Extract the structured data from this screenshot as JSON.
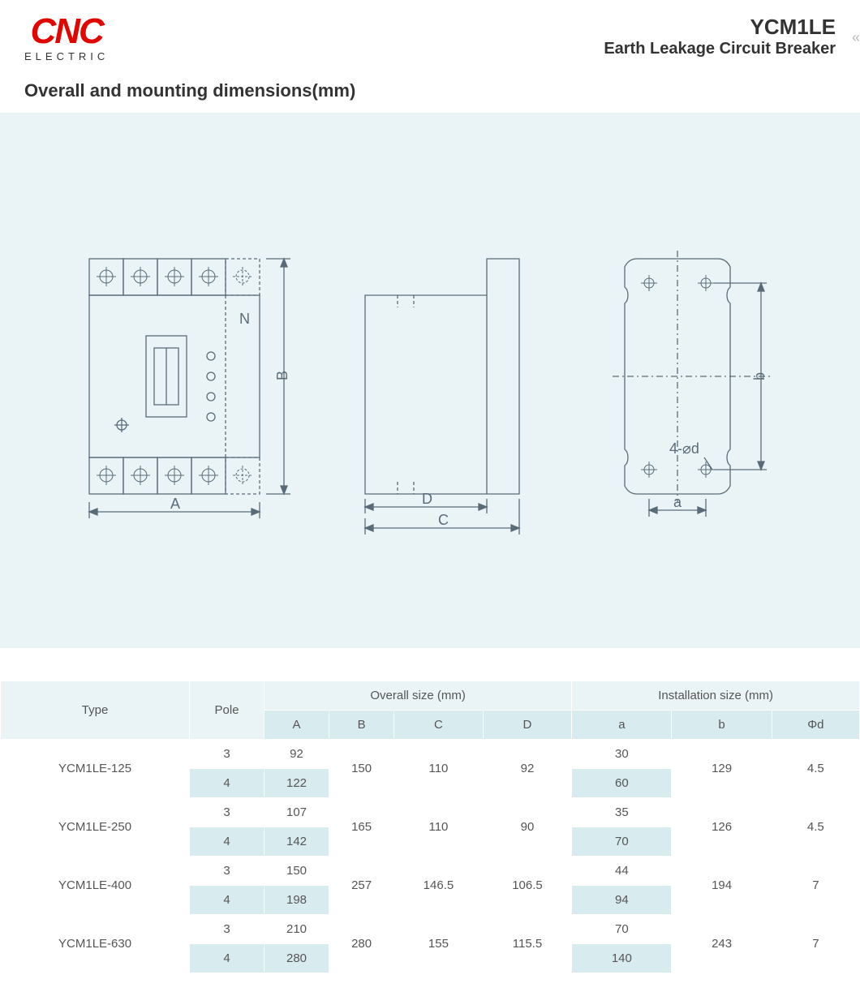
{
  "brand": {
    "logo_main": "CNC",
    "logo_sub": "ELECTRIC"
  },
  "product": {
    "code": "YCM1LE",
    "desc": "Earth Leakage Circuit Breaker"
  },
  "section_title": "Overall and mounting dimensions(mm)",
  "diagram": {
    "background_color": "#eaf4f6",
    "stroke_color": "#5a6b78",
    "labels": {
      "A": "A",
      "B": "B",
      "C": "C",
      "D": "D",
      "a": "a",
      "b": "b",
      "N": "N",
      "holes": "4-⌀d"
    }
  },
  "table": {
    "header_group_overall": "Overall size (mm)",
    "header_group_install": "Installation size (mm)",
    "columns": {
      "type": "Type",
      "pole": "Pole",
      "A": "A",
      "B": "B",
      "C": "C",
      "D": "D",
      "a": "a",
      "b": "b",
      "phid": "Φd"
    },
    "rows": [
      {
        "type": "YCM1LE-125",
        "pole3": "3",
        "pole4": "4",
        "A3": "92",
        "A4": "122",
        "B": "150",
        "C": "110",
        "D": "92",
        "a3": "30",
        "a4": "60",
        "b": "129",
        "phid": "4.5"
      },
      {
        "type": "YCM1LE-250",
        "pole3": "3",
        "pole4": "4",
        "A3": "107",
        "A4": "142",
        "B": "165",
        "C": "110",
        "D": "90",
        "a3": "35",
        "a4": "70",
        "b": "126",
        "phid": "4.5"
      },
      {
        "type": "YCM1LE-400",
        "pole3": "3",
        "pole4": "4",
        "A3": "150",
        "A4": "198",
        "B": "257",
        "C": "146.5",
        "D": "106.5",
        "a3": "44",
        "a4": "94",
        "b": "194",
        "phid": "7"
      },
      {
        "type": "YCM1LE-630",
        "pole3": "3",
        "pole4": "4",
        "A3": "210",
        "A4": "280",
        "B": "280",
        "C": "155",
        "D": "115.5",
        "a3": "70",
        "a4": "140",
        "b": "243",
        "phid": "7"
      }
    ],
    "tint_color": "#d8ecef",
    "header_bg": "#eaf4f6"
  }
}
